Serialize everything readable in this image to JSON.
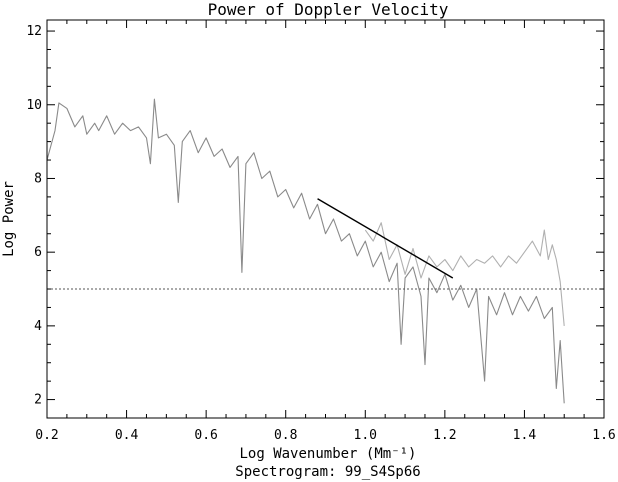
{
  "chart_data": {
    "type": "line",
    "title": "Power of Doppler Velocity",
    "xlabel": "Log Wavenumber (Mm⁻¹)",
    "subtitle": "Spectrogram: 99_S4Sp66",
    "ylabel": "Log Power",
    "xlim": [
      0.2,
      1.6
    ],
    "ylim": [
      1.5,
      12.3
    ],
    "x_ticks": [
      "0.2",
      "0.4",
      "0.6",
      "0.8",
      "1.0",
      "1.2",
      "1.4",
      "1.6"
    ],
    "y_ticks": [
      "2",
      "4",
      "6",
      "8",
      "10",
      "12"
    ],
    "x_tick_values": [
      0.2,
      0.4,
      0.6,
      0.8,
      1.0,
      1.2,
      1.4,
      1.6
    ],
    "y_tick_values": [
      2,
      4,
      6,
      8,
      10,
      12
    ],
    "x_minor_step": 0.05,
    "y_minor_step": 0.5,
    "grid": false,
    "legend": "none",
    "series": [
      {
        "role": "light-spectrum",
        "color": "#b0b0b0",
        "points": [
          [
            1.0,
            6.6
          ],
          [
            1.02,
            6.3
          ],
          [
            1.04,
            6.8
          ],
          [
            1.06,
            5.8
          ],
          [
            1.08,
            6.2
          ],
          [
            1.1,
            5.4
          ],
          [
            1.12,
            6.1
          ],
          [
            1.14,
            5.3
          ],
          [
            1.16,
            5.9
          ],
          [
            1.18,
            5.6
          ],
          [
            1.2,
            5.8
          ],
          [
            1.22,
            5.5
          ],
          [
            1.24,
            5.9
          ],
          [
            1.26,
            5.6
          ],
          [
            1.28,
            5.8
          ],
          [
            1.3,
            5.7
          ],
          [
            1.32,
            5.9
          ],
          [
            1.34,
            5.6
          ],
          [
            1.36,
            5.9
          ],
          [
            1.38,
            5.7
          ],
          [
            1.4,
            6.0
          ],
          [
            1.42,
            6.3
          ],
          [
            1.44,
            5.9
          ],
          [
            1.45,
            6.6
          ],
          [
            1.46,
            5.8
          ],
          [
            1.47,
            6.2
          ],
          [
            1.48,
            5.8
          ],
          [
            1.49,
            5.2
          ],
          [
            1.5,
            4.0
          ]
        ]
      },
      {
        "role": "main-spectrum",
        "color": "#8a8a8a",
        "points": [
          [
            0.2,
            8.5
          ],
          [
            0.22,
            9.3
          ],
          [
            0.23,
            10.05
          ],
          [
            0.25,
            9.9
          ],
          [
            0.27,
            9.4
          ],
          [
            0.29,
            9.7
          ],
          [
            0.3,
            9.2
          ],
          [
            0.32,
            9.5
          ],
          [
            0.33,
            9.3
          ],
          [
            0.35,
            9.7
          ],
          [
            0.37,
            9.2
          ],
          [
            0.39,
            9.5
          ],
          [
            0.41,
            9.3
          ],
          [
            0.43,
            9.4
          ],
          [
            0.45,
            9.1
          ],
          [
            0.46,
            8.4
          ],
          [
            0.47,
            10.15
          ],
          [
            0.48,
            9.1
          ],
          [
            0.5,
            9.2
          ],
          [
            0.52,
            8.9
          ],
          [
            0.53,
            7.35
          ],
          [
            0.54,
            9.0
          ],
          [
            0.56,
            9.3
          ],
          [
            0.58,
            8.7
          ],
          [
            0.6,
            9.1
          ],
          [
            0.62,
            8.6
          ],
          [
            0.64,
            8.8
          ],
          [
            0.66,
            8.3
          ],
          [
            0.68,
            8.6
          ],
          [
            0.69,
            5.45
          ],
          [
            0.7,
            8.4
          ],
          [
            0.72,
            8.7
          ],
          [
            0.74,
            8.0
          ],
          [
            0.76,
            8.2
          ],
          [
            0.78,
            7.5
          ],
          [
            0.8,
            7.7
          ],
          [
            0.82,
            7.2
          ],
          [
            0.84,
            7.6
          ],
          [
            0.86,
            6.9
          ],
          [
            0.88,
            7.3
          ],
          [
            0.9,
            6.5
          ],
          [
            0.92,
            6.9
          ],
          [
            0.94,
            6.3
          ],
          [
            0.96,
            6.5
          ],
          [
            0.98,
            5.9
          ],
          [
            1.0,
            6.3
          ],
          [
            1.02,
            5.6
          ],
          [
            1.04,
            6.0
          ],
          [
            1.06,
            5.2
          ],
          [
            1.08,
            5.7
          ],
          [
            1.09,
            3.5
          ],
          [
            1.1,
            5.3
          ],
          [
            1.12,
            5.6
          ],
          [
            1.14,
            4.8
          ],
          [
            1.15,
            2.95
          ],
          [
            1.16,
            5.3
          ],
          [
            1.18,
            4.9
          ],
          [
            1.2,
            5.4
          ],
          [
            1.22,
            4.7
          ],
          [
            1.24,
            5.1
          ],
          [
            1.26,
            4.5
          ],
          [
            1.28,
            5.0
          ],
          [
            1.3,
            2.5
          ],
          [
            1.31,
            4.8
          ],
          [
            1.33,
            4.3
          ],
          [
            1.35,
            4.9
          ],
          [
            1.37,
            4.3
          ],
          [
            1.39,
            4.8
          ],
          [
            1.41,
            4.4
          ],
          [
            1.43,
            4.8
          ],
          [
            1.45,
            4.2
          ],
          [
            1.47,
            4.5
          ],
          [
            1.48,
            2.3
          ],
          [
            1.49,
            3.6
          ],
          [
            1.5,
            1.9
          ]
        ]
      }
    ],
    "reference_lines": [
      {
        "role": "fit-line",
        "color": "#000000",
        "style": "solid",
        "points": [
          [
            0.88,
            7.45
          ],
          [
            1.22,
            5.3
          ]
        ]
      },
      {
        "role": "noise-level",
        "color": "#555555",
        "style": "dotted",
        "points": [
          [
            0.2,
            5.0
          ],
          [
            1.6,
            5.0
          ]
        ]
      }
    ]
  }
}
